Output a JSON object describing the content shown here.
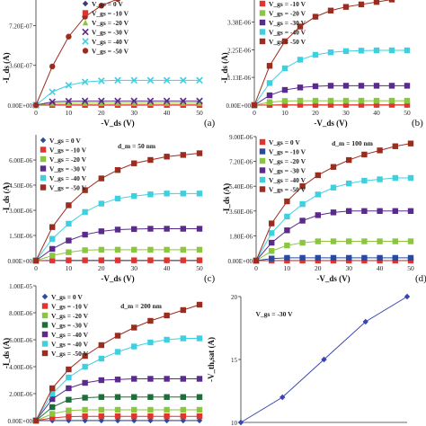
{
  "chart_data": [
    {
      "type": "line",
      "panel_label": "(a)",
      "xlabel": "-V_ds (V)",
      "ylabel": "-I_ds (A)",
      "ylim": [
        0,
        1e-06
      ],
      "y_ticks": [
        "0.00E+00",
        "3.60E-07",
        "7.20E-07"
      ],
      "y_tick_values": [
        0,
        3.6e-07,
        7.2e-07
      ],
      "x_ticks": [
        "0",
        "10",
        "20",
        "30",
        "40",
        "50"
      ],
      "x_tick_values": [
        0,
        10,
        20,
        30,
        40,
        50
      ],
      "x": [
        0,
        5,
        10,
        15,
        20,
        25,
        30,
        35,
        40,
        45,
        50
      ],
      "series": [
        {
          "name": "V_gs = 0 V",
          "color": "#3a3a8c",
          "marker": "diamond",
          "values": [
            0,
            1e-09,
            1e-09,
            1e-09,
            1e-09,
            1e-09,
            1e-09,
            1e-09,
            1e-09,
            1e-09,
            1e-09
          ]
        },
        {
          "name": "V_gs = -10 V",
          "color": "#e0342e",
          "marker": "square",
          "values": [
            0,
            2e-09,
            2e-09,
            2e-09,
            2e-09,
            2e-09,
            2e-09,
            2e-09,
            2e-09,
            2e-09,
            2e-09
          ]
        },
        {
          "name": "V_gs = -20 V",
          "color": "#8cc63e",
          "marker": "triangle",
          "values": [
            0,
            1.5e-08,
            1.8e-08,
            1.9e-08,
            1.9e-08,
            1.9e-08,
            1.9e-08,
            1.9e-08,
            1.9e-08,
            1.9e-08,
            1.9e-08
          ]
        },
        {
          "name": "V_gs = -30 V",
          "color": "#5a2a8c",
          "marker": "x",
          "values": [
            0,
            3e-08,
            3.6e-08,
            3.8e-08,
            3.8e-08,
            3.8e-08,
            3.8e-08,
            3.8e-08,
            3.8e-08,
            3.8e-08,
            3.8e-08
          ]
        },
        {
          "name": "V_gs = -40 V",
          "color": "#3fd0e0",
          "marker": "x",
          "values": [
            0,
            1.2e-07,
            1.8e-07,
            2.1e-07,
            2.2e-07,
            2.25e-07,
            2.25e-07,
            2.25e-07,
            2.25e-07,
            2.25e-07,
            2.25e-07
          ]
        },
        {
          "name": "V_gs = -50 V",
          "color": "#9b2d20",
          "marker": "circle",
          "values": [
            0,
            3.5e-07,
            6.2e-07,
            8e-07,
            9e-07,
            9.6e-07,
            1e-06,
            1e-06,
            1e-06,
            1e-06,
            1e-06
          ]
        }
      ]
    },
    {
      "type": "line",
      "panel_label": "(b)",
      "xlabel": "-V_ds (V)",
      "ylabel": "-I_ds (A)",
      "ylim": [
        0,
        4.5e-06
      ],
      "y_ticks": [
        "0.00E+00",
        "1.13E-06",
        "2.25E-06",
        "3.38E-06"
      ],
      "y_tick_values": [
        0,
        1.13e-06,
        2.25e-06,
        3.38e-06
      ],
      "x_ticks": [
        "0",
        "10",
        "20",
        "30",
        "40",
        "50"
      ],
      "x_tick_values": [
        0,
        10,
        20,
        30,
        40,
        50
      ],
      "x": [
        0,
        5,
        10,
        15,
        20,
        25,
        30,
        35,
        40,
        45,
        50
      ],
      "series": [
        {
          "name": "V_gs = -10 V",
          "color": "#e0342e",
          "marker": "square",
          "values": [
            0,
            1e-08,
            1.5e-08,
            1.5e-08,
            1.5e-08,
            1.5e-08,
            1.5e-08,
            1.5e-08,
            1.5e-08,
            1.5e-08,
            1.5e-08
          ]
        },
        {
          "name": "V_gs = -20 V",
          "color": "#8cc63e",
          "marker": "square",
          "values": [
            0,
            1.2e-07,
            1.7e-07,
            1.8e-07,
            1.8e-07,
            1.8e-07,
            1.8e-07,
            1.8e-07,
            1.8e-07,
            1.8e-07,
            1.8e-07
          ]
        },
        {
          "name": "V_gs = -30 V",
          "color": "#5a2a8c",
          "marker": "square",
          "values": [
            0,
            4e-07,
            6.2e-07,
            7.2e-07,
            7.7e-07,
            7.9e-07,
            7.9e-07,
            7.9e-07,
            7.9e-07,
            7.9e-07,
            7.9e-07
          ]
        },
        {
          "name": "V_gs = -40 V",
          "color": "#3fd0e0",
          "marker": "square",
          "values": [
            0,
            9e-07,
            1.5e-06,
            1.85e-06,
            2.05e-06,
            2.15e-06,
            2.2e-06,
            2.22e-06,
            2.23e-06,
            2.23e-06,
            2.23e-06
          ]
        },
        {
          "name": "V_gs = -50 V",
          "color": "#9b2d20",
          "marker": "square",
          "values": [
            0,
            1.6e-06,
            2.6e-06,
            3.2e-06,
            3.6e-06,
            3.85e-06,
            4e-06,
            4.1e-06,
            4.2e-06,
            4.3e-06,
            4.4e-06
          ]
        }
      ]
    },
    {
      "type": "line",
      "panel_label": "(c)",
      "annotation": "d_m = 50 nm",
      "xlabel": "-V_ds (V)",
      "ylabel": "-I_ds (A)",
      "ylim": [
        0,
        7.5e-06
      ],
      "y_ticks": [
        "0.00E+00",
        "1.50E-06",
        "3.00E-06",
        "4.50E-06",
        "6.00E-06"
      ],
      "y_tick_values": [
        0,
        1.5e-06,
        3e-06,
        4.5e-06,
        6e-06
      ],
      "x_ticks": [
        "0",
        "10",
        "20",
        "30",
        "40",
        "50"
      ],
      "x_tick_values": [
        0,
        10,
        20,
        30,
        40,
        50
      ],
      "x": [
        0,
        5,
        10,
        15,
        20,
        25,
        30,
        35,
        40,
        45,
        50
      ],
      "series": [
        {
          "name": "V_gs = 0 V",
          "color": "#2a4aa0",
          "marker": "diamond",
          "values": [
            0,
            5e-09,
            5e-09,
            5e-09,
            5e-09,
            5e-09,
            5e-09,
            5e-09,
            5e-09,
            5e-09,
            5e-09
          ]
        },
        {
          "name": "V_gs = -10 V",
          "color": "#e0342e",
          "marker": "square",
          "values": [
            0,
            1.5e-08,
            2e-08,
            2e-08,
            2e-08,
            2e-08,
            2e-08,
            2e-08,
            2e-08,
            2e-08,
            2e-08
          ]
        },
        {
          "name": "V_gs = -20 V",
          "color": "#8cc63e",
          "marker": "square",
          "values": [
            0,
            3e-07,
            5e-07,
            6.2e-07,
            6.5e-07,
            6.5e-07,
            6.5e-07,
            6.5e-07,
            6.5e-07,
            6.5e-07,
            6.5e-07
          ]
        },
        {
          "name": "V_gs = -30 V",
          "color": "#5a2a8c",
          "marker": "square",
          "values": [
            0,
            7e-07,
            1.2e-06,
            1.55e-06,
            1.75e-06,
            1.85e-06,
            1.88e-06,
            1.9e-06,
            1.9e-06,
            1.9e-06,
            1.9e-06
          ]
        },
        {
          "name": "V_gs = -40 V",
          "color": "#3fd0e0",
          "marker": "square",
          "values": [
            0,
            1.3e-06,
            2.2e-06,
            2.9e-06,
            3.4e-06,
            3.7e-06,
            3.85e-06,
            3.95e-06,
            4e-06,
            4e-06,
            4e-06
          ]
        },
        {
          "name": "V_gs = -50 V",
          "color": "#9b2d20",
          "marker": "square",
          "values": [
            0,
            2e-06,
            3.3e-06,
            4.2e-06,
            4.9e-06,
            5.4e-06,
            5.8e-06,
            6e-06,
            6.2e-06,
            6.3e-06,
            6.4e-06
          ]
        }
      ]
    },
    {
      "type": "line",
      "panel_label": "(d)",
      "annotation": "d_m = 100 nm",
      "xlabel": "-V_ds (V)",
      "ylabel": "-I_ds (A)",
      "ylim": [
        0,
        9e-06
      ],
      "y_ticks": [
        "0.00E+00",
        "1.80E-06",
        "3.60E-06",
        "5.40E-06",
        "7.20E-06",
        "9.00E-06"
      ],
      "y_tick_values": [
        0,
        1.8e-06,
        3.6e-06,
        5.4e-06,
        7.2e-06,
        9e-06
      ],
      "x_ticks": [
        "0",
        "10",
        "20",
        "30",
        "40",
        "50"
      ],
      "x_tick_values": [
        0,
        10,
        20,
        30,
        40,
        50
      ],
      "x": [
        0,
        5,
        10,
        15,
        20,
        25,
        30,
        35,
        40,
        45,
        50
      ],
      "series": [
        {
          "name": "V_gs = 0 V",
          "color": "#e0342e",
          "marker": "square",
          "values": [
            0,
            5e-09,
            5e-09,
            5e-09,
            5e-09,
            5e-09,
            5e-09,
            5e-09,
            5e-09,
            5e-09,
            5e-09
          ]
        },
        {
          "name": "V_gs = -10 V",
          "color": "#2a4aa0",
          "marker": "square",
          "values": [
            0,
            1.5e-07,
            2e-07,
            2e-07,
            2e-07,
            2e-07,
            2e-07,
            2e-07,
            2e-07,
            2e-07,
            2e-07
          ]
        },
        {
          "name": "V_gs = -20 V",
          "color": "#8cc63e",
          "marker": "square",
          "values": [
            0,
            7e-07,
            1.1e-06,
            1.3e-06,
            1.4e-06,
            1.4e-06,
            1.4e-06,
            1.4e-06,
            1.4e-06,
            1.4e-06,
            1.4e-06
          ]
        },
        {
          "name": "V_gs = -30 V",
          "color": "#5a2a8c",
          "marker": "square",
          "values": [
            0,
            1.3e-06,
            2.2e-06,
            2.9e-06,
            3.3e-06,
            3.5e-06,
            3.6e-06,
            3.6e-06,
            3.6e-06,
            3.6e-06,
            3.6e-06
          ]
        },
        {
          "name": "V_gs = -40 V",
          "color": "#3fd0e0",
          "marker": "square",
          "values": [
            0,
            2e-06,
            3.2e-06,
            4.1e-06,
            4.8e-06,
            5.3e-06,
            5.6e-06,
            5.8e-06,
            5.9e-06,
            6e-06,
            6e-06
          ]
        },
        {
          "name": "V_gs = -50 V",
          "color": "#9b2d20",
          "marker": "square",
          "values": [
            0,
            2.7e-06,
            4.3e-06,
            5.4e-06,
            6.2e-06,
            6.8e-06,
            7.3e-06,
            7.7e-06,
            8e-06,
            8.3e-06,
            8.5e-06
          ]
        }
      ]
    },
    {
      "type": "line",
      "panel_label": "",
      "annotation": "d_m = 200 nm",
      "xlabel": "",
      "ylabel": "-I_ds (A)",
      "ylim": [
        0,
        1e-05
      ],
      "y_ticks": [
        "0.00E+00",
        "2.00E-06",
        "4.00E-06",
        "6.00E-06",
        "8.00E-06",
        "1.00E-05"
      ],
      "y_tick_values": [
        0,
        2e-06,
        4e-06,
        6e-06,
        8e-06,
        1e-05
      ],
      "x_ticks": [],
      "x_tick_values": [],
      "x": [
        0,
        5,
        10,
        15,
        20,
        25,
        30,
        35,
        40,
        45,
        50
      ],
      "series": [
        {
          "name": "V_gs = 0 V",
          "color": "#2a4aa0",
          "marker": "diamond",
          "values": [
            0,
            5e-09,
            5e-09,
            5e-09,
            5e-09,
            5e-09,
            5e-09,
            5e-09,
            5e-09,
            5e-09,
            5e-09
          ]
        },
        {
          "name": "V_gs = -10 V",
          "color": "#e0342e",
          "marker": "square",
          "values": [
            0,
            2e-07,
            3e-07,
            3.2e-07,
            3.2e-07,
            3.2e-07,
            3.2e-07,
            3.2e-07,
            3.2e-07,
            3.2e-07,
            3.2e-07
          ]
        },
        {
          "name": "V_gs = -20 V",
          "color": "#8cc63e",
          "marker": "square",
          "values": [
            0,
            5e-07,
            7.5e-07,
            8e-07,
            8e-07,
            8e-07,
            8e-07,
            8e-07,
            8e-07,
            8e-07,
            8e-07
          ]
        },
        {
          "name": "V_gs = -30 V",
          "color": "#1e6e3a",
          "marker": "square",
          "values": [
            0,
            1e-06,
            1.55e-06,
            1.7e-06,
            1.75e-06,
            1.75e-06,
            1.75e-06,
            1.75e-06,
            1.75e-06,
            1.75e-06,
            1.75e-06
          ]
        },
        {
          "name": "V_gs = -40 V",
          "color": "#5a2a8c",
          "marker": "square",
          "values": [
            0,
            1.6e-06,
            2.4e-06,
            2.8e-06,
            3e-06,
            3.05e-06,
            3.1e-06,
            3.1e-06,
            3.1e-06,
            3.1e-06,
            3.1e-06
          ]
        },
        {
          "name": "V_gs = -40 V",
          "color": "#3fd0e0",
          "marker": "square",
          "values": [
            0,
            2e-06,
            3.2e-06,
            4e-06,
            4.6e-06,
            5.1e-06,
            5.5e-06,
            5.8e-06,
            6e-06,
            6.1e-06,
            6.1e-06
          ]
        },
        {
          "name": "V_gs = -50 V",
          "color": "#9b2d20",
          "marker": "square",
          "values": [
            0,
            2.4e-06,
            3.8e-06,
            4.8e-06,
            5.6e-06,
            6.3e-06,
            6.9e-06,
            7.4e-06,
            7.8e-06,
            8.2e-06,
            8.6e-06
          ]
        }
      ]
    },
    {
      "type": "line",
      "panel_label": "",
      "annotation": "V_gs = -30 V",
      "xlabel": "",
      "ylabel": "-V_th,sat (A)",
      "ylim": [
        10,
        20
      ],
      "y_ticks": [
        "10",
        "15",
        "20"
      ],
      "y_tick_values": [
        10,
        15,
        20
      ],
      "x_ticks": [],
      "x_tick_values": [],
      "x": [
        0,
        1,
        2,
        3,
        4
      ],
      "series": [
        {
          "name": "",
          "color": "#3a46b0",
          "marker": "diamond",
          "values": [
            10,
            12,
            15,
            18,
            20
          ]
        }
      ]
    }
  ],
  "legend_labels": {
    "a": [
      "V_gs = 0 V",
      "V_gs = -10 V",
      "V_gs = -20 V",
      "V_gs = -30 V",
      "V_gs = -40 V",
      "V_gs = -50 V"
    ],
    "b": [
      "V_gs = -10 V",
      "V_gs = -20 V",
      "V_gs = -30 V",
      "V_gs = -40 V",
      "V_gs = -50 V"
    ],
    "c": [
      "V_gs = 0 V",
      "V_gs = -10 V",
      "V_gs = -20 V",
      "V_gs = -30 V",
      "V_gs = -40 V",
      "V_gs = -50 V"
    ],
    "d": [
      "V_gs = 0 V",
      "V_gs = -10 V",
      "V_gs = -20 V",
      "V_gs = -30 V",
      "V_gs = -40 V",
      "V_gs = -50 V"
    ],
    "e": [
      "V_gs = 0 V",
      "V_gs = -10 V",
      "V_gs = -20 V",
      "V_gs = -30 V",
      "V_gs = -40 V",
      "V_gs = -40 V",
      "V_gs = -50 V"
    ]
  }
}
